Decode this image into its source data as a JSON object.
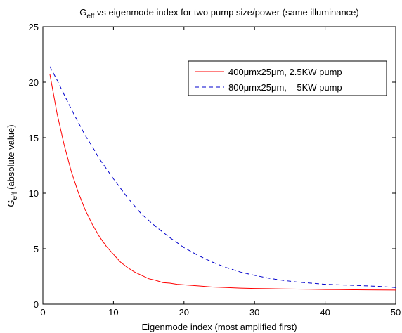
{
  "chart_data": {
    "type": "line",
    "title_main": "G",
    "title_sub": "eff",
    "title_rest": " vs eigenmode index for two pump size/power (same illuminance)",
    "xlabel": "Eigenmode index (most amplified first)",
    "ylabel_main": "G",
    "ylabel_sub": "eff",
    "ylabel_rest": " (absolute value)",
    "xlim": [
      0,
      50
    ],
    "ylim": [
      0,
      25
    ],
    "xticks": [
      0,
      10,
      20,
      30,
      40,
      50
    ],
    "yticks": [
      0,
      5,
      10,
      15,
      20,
      25
    ],
    "grid": false,
    "legend_position": "top-right",
    "series": [
      {
        "name": "400μmx25μm, 2.5KW pump",
        "color": "#ff0000",
        "style": "solid",
        "x": [
          1,
          2,
          3,
          4,
          5,
          6,
          7,
          8,
          9,
          10,
          11,
          12,
          13,
          14,
          15,
          16,
          17,
          18,
          19,
          20,
          22,
          24,
          26,
          28,
          30,
          32,
          34,
          36,
          38,
          40,
          42,
          44,
          46,
          48,
          50
        ],
        "y": [
          20.7,
          17.2,
          14.4,
          12.0,
          10.1,
          8.5,
          7.2,
          6.1,
          5.2,
          4.5,
          3.8,
          3.3,
          2.9,
          2.6,
          2.3,
          2.15,
          1.95,
          1.9,
          1.8,
          1.75,
          1.65,
          1.55,
          1.5,
          1.45,
          1.42,
          1.4,
          1.38,
          1.36,
          1.34,
          1.32,
          1.31,
          1.3,
          1.29,
          1.28,
          1.27
        ]
      },
      {
        "name": "800μmx25μm,    5KW pump",
        "color": "#0000cc",
        "style": "dashed",
        "x": [
          1,
          2,
          3,
          4,
          5,
          6,
          7,
          8,
          9,
          10,
          12,
          14,
          16,
          18,
          20,
          22,
          24,
          26,
          28,
          30,
          32,
          34,
          36,
          38,
          40,
          42,
          44,
          46,
          48,
          50
        ],
        "y": [
          21.4,
          20.2,
          18.9,
          17.6,
          16.4,
          15.2,
          14.2,
          13.1,
          12.2,
          11.3,
          9.6,
          8.1,
          7.0,
          6.0,
          5.1,
          4.4,
          3.8,
          3.3,
          2.9,
          2.6,
          2.35,
          2.15,
          2.0,
          1.9,
          1.8,
          1.75,
          1.7,
          1.65,
          1.6,
          1.5
        ]
      }
    ]
  }
}
